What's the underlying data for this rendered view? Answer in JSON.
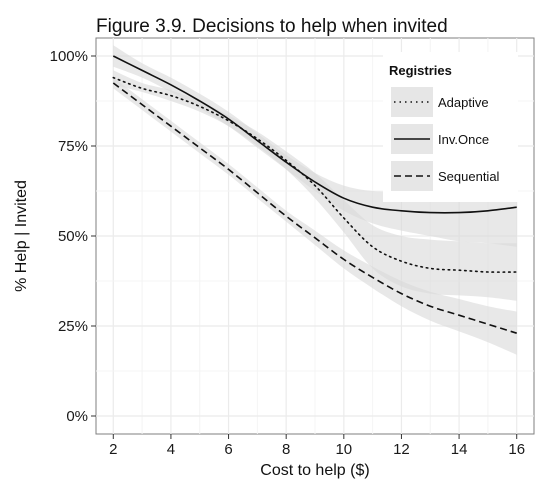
{
  "chart_data": {
    "type": "line",
    "title": "Figure 3.9. Decisions to help when invited",
    "xlabel": "Cost to help ($)",
    "ylabel": "% Help | Invited",
    "xlim": [
      2,
      16
    ],
    "ylim": [
      0,
      100
    ],
    "x_ticks": [
      2,
      4,
      6,
      8,
      10,
      12,
      14,
      16
    ],
    "y_ticks": [
      0,
      25,
      50,
      75,
      100
    ],
    "y_tick_labels": [
      "0%",
      "25%",
      "50%",
      "75%",
      "100%"
    ],
    "grid": true,
    "legend_position": "top-right",
    "legend_title": "Registries",
    "band_color": "#d9d9d9",
    "line_color": "#111111",
    "series": [
      {
        "name": "Adaptive",
        "line_style": "dotted",
        "x": [
          2,
          3,
          4,
          5,
          6,
          7,
          8,
          9,
          10,
          11,
          12,
          13,
          14,
          15,
          16
        ],
        "values": [
          94,
          91,
          89,
          86,
          82,
          77,
          71,
          64,
          55,
          47,
          43,
          41,
          40.5,
          40,
          40
        ],
        "lower": [
          92,
          90,
          87.5,
          84.5,
          80.5,
          75,
          68.5,
          60.5,
          51,
          41,
          36,
          34,
          33.5,
          33,
          32
        ],
        "upper": [
          96,
          92.5,
          90.5,
          87.5,
          83.5,
          79,
          73.5,
          67.5,
          60,
          53,
          50,
          49,
          48.5,
          48,
          48
        ]
      },
      {
        "name": "Inv.Once",
        "line_style": "solid",
        "x": [
          2,
          3,
          4,
          5,
          6,
          7,
          8,
          9,
          10,
          11,
          12,
          13,
          14,
          15,
          16
        ],
        "values": [
          100,
          96,
          92,
          87.5,
          82.5,
          76.5,
          70.5,
          65,
          60.5,
          58,
          57,
          56.5,
          56.5,
          57,
          58
        ],
        "lower": [
          97,
          94,
          90,
          85.5,
          80.5,
          74.5,
          68.5,
          62.5,
          57,
          53.5,
          51.5,
          50,
          48.5,
          48,
          47
        ],
        "upper": [
          103,
          98,
          94,
          89.5,
          84.5,
          78.5,
          72.5,
          67.5,
          64,
          62.5,
          62.5,
          63,
          64.5,
          66.5,
          69
        ]
      },
      {
        "name": "Sequential",
        "line_style": "dashed",
        "x": [
          2,
          3,
          4,
          5,
          6,
          7,
          8,
          9,
          10,
          11,
          12,
          13,
          14,
          15,
          16
        ],
        "values": [
          92.5,
          86.5,
          80.5,
          74.5,
          68.5,
          62,
          55.5,
          49.5,
          43.5,
          38.5,
          34,
          30.5,
          28,
          25.5,
          23
        ],
        "lower": [
          91,
          85,
          79,
          73,
          67,
          60.5,
          54,
          47.5,
          41,
          35.5,
          30.5,
          26.5,
          23.5,
          20.5,
          17
        ],
        "upper": [
          94,
          88,
          82,
          76,
          70,
          63.5,
          57,
          51.5,
          46,
          41.5,
          37.5,
          34.5,
          32.5,
          30.5,
          29
        ]
      }
    ]
  }
}
